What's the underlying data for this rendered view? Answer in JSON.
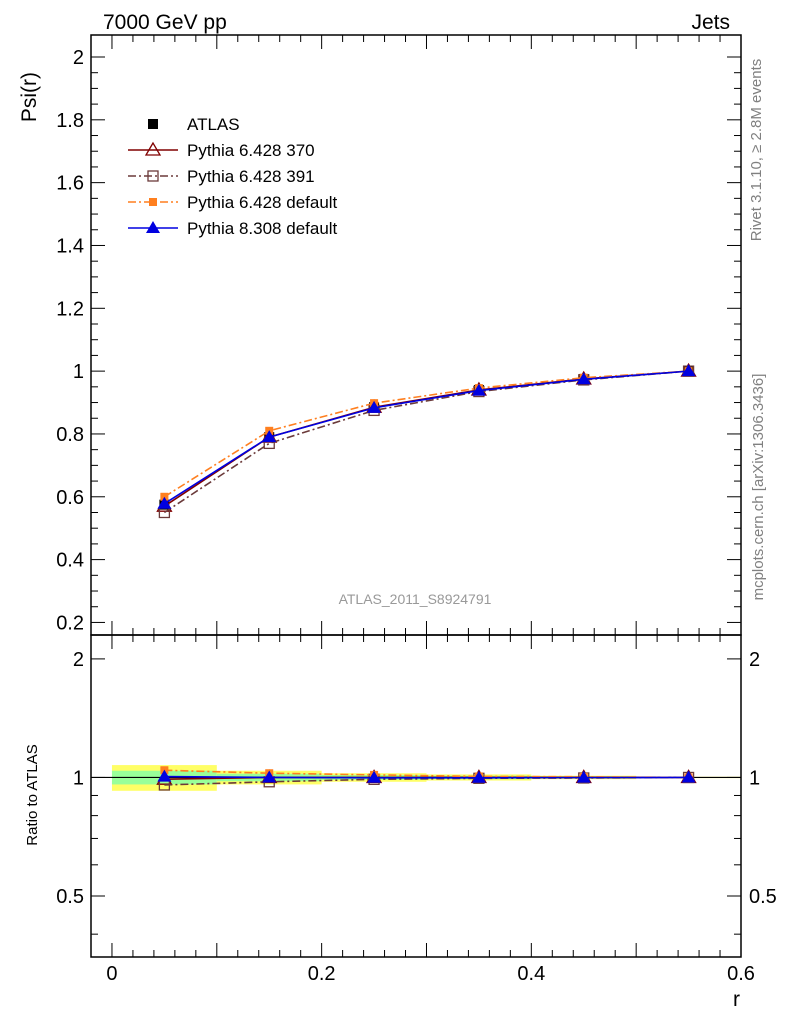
{
  "header": {
    "left": "7000 GeV pp",
    "right": "Jets"
  },
  "side_labels": {
    "rivet": "Rivet 3.1.10, ≥ 2.8M events",
    "mcplots": "mcplots.cern.ch [arXiv:1306.3436]"
  },
  "watermark": "ATLAS_2011_S8924791",
  "colors": {
    "atlas": "#000000",
    "py370": "#800000",
    "py391": "#6b3a3a",
    "py_default": "#ff7f1f",
    "py8": "#0000e0",
    "band_inner": "#99ff99",
    "band_outer": "#ffff66"
  },
  "chart_data": [
    {
      "type": "line",
      "panel": "main",
      "xlabel": "",
      "ylabel": "Psi(r)",
      "xlim": [
        -0.02,
        0.6
      ],
      "ylim": [
        0.16,
        2.07
      ],
      "yticks": [
        0.2,
        0.4,
        0.6,
        0.8,
        1,
        1.2,
        1.4,
        1.6,
        1.8,
        2
      ],
      "ytick_labels": [
        "0.2",
        "0.4",
        "0.6",
        "0.8",
        "1",
        "1.2",
        "1.4",
        "1.6",
        "1.8",
        "2"
      ],
      "legend_position": "top-left",
      "x": [
        0.05,
        0.15,
        0.25,
        0.35,
        0.45,
        0.55
      ],
      "series": [
        {
          "name": "ATLAS",
          "values": [
            0.575,
            0.79,
            0.885,
            0.94,
            0.975,
            1.0
          ]
        },
        {
          "name": "Pythia 6.428 370",
          "values": [
            0.57,
            0.79,
            0.885,
            0.94,
            0.975,
            1.0
          ]
        },
        {
          "name": "Pythia 6.428 391",
          "values": [
            0.55,
            0.77,
            0.875,
            0.935,
            0.972,
            1.0
          ]
        },
        {
          "name": "Pythia 6.428 default",
          "values": [
            0.6,
            0.81,
            0.898,
            0.946,
            0.979,
            1.0
          ]
        },
        {
          "name": "Pythia 8.308 default",
          "values": [
            0.578,
            0.79,
            0.883,
            0.938,
            0.974,
            1.0
          ]
        }
      ]
    },
    {
      "type": "line",
      "panel": "ratio",
      "xlabel": "r",
      "ylabel": "Ratio to ATLAS",
      "xlim": [
        -0.02,
        0.6
      ],
      "ylim": [
        0.35,
        2.3
      ],
      "yticks": [
        0.5,
        1,
        2
      ],
      "ytick_labels": [
        "0.5",
        "1",
        "2"
      ],
      "xticks": [
        0,
        0.2,
        0.4,
        0.6
      ],
      "xtick_labels": [
        "0",
        "0.2",
        "0.4",
        "0.6"
      ],
      "x": [
        0.05,
        0.15,
        0.25,
        0.35,
        0.45,
        0.55
      ],
      "bands": {
        "outer_halfwidth": [
          0.075,
          0.04,
          0.025,
          0.018,
          0.01,
          0.004
        ],
        "inner_halfwidth": [
          0.04,
          0.022,
          0.014,
          0.01,
          0.006,
          0.002
        ]
      },
      "series": [
        {
          "name": "Pythia 6.428 370",
          "values": [
            0.99,
            1.0,
            1.0,
            1.0,
            1.0,
            1.0
          ]
        },
        {
          "name": "Pythia 6.428 391",
          "values": [
            0.957,
            0.975,
            0.989,
            0.995,
            0.997,
            1.0
          ]
        },
        {
          "name": "Pythia 6.428 default",
          "values": [
            1.043,
            1.025,
            1.015,
            1.006,
            1.004,
            1.0
          ]
        },
        {
          "name": "Pythia 8.308 default",
          "values": [
            1.005,
            1.0,
            0.998,
            0.998,
            0.999,
            1.0
          ]
        }
      ]
    }
  ]
}
